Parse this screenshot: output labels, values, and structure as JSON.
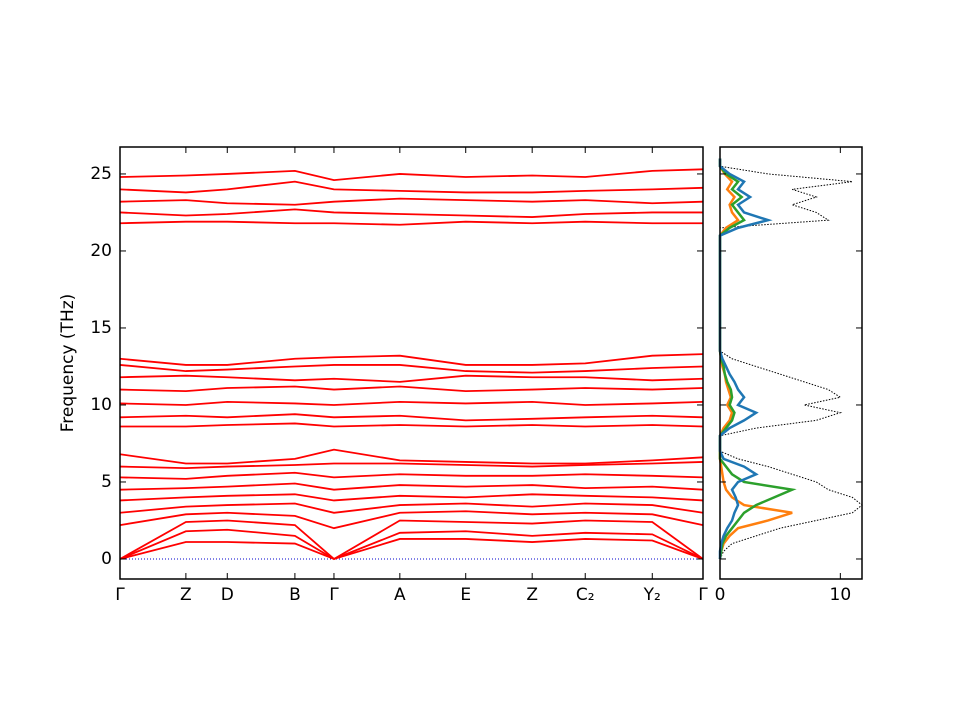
{
  "chart_data": [
    {
      "type": "line",
      "ylabel": "Frequency (THz)",
      "color": "#ff0000",
      "x": [
        0,
        0.113,
        0.184,
        0.3,
        0.367,
        0.48,
        0.593,
        0.707,
        0.798,
        0.913,
        1.0
      ],
      "xlim": [
        0,
        1.0
      ],
      "xticks": [
        {
          "value": 0,
          "label": "Γ"
        },
        {
          "value": 0.113,
          "label": "Z"
        },
        {
          "value": 0.184,
          "label": "D"
        },
        {
          "value": 0.3,
          "label": "B"
        },
        {
          "value": 0.367,
          "label": "Γ"
        },
        {
          "value": 0.48,
          "label": "A"
        },
        {
          "value": 0.593,
          "label": "E"
        },
        {
          "value": 0.707,
          "label": "Z"
        },
        {
          "value": 0.798,
          "label": "C₂"
        },
        {
          "value": 0.913,
          "label": "Y₂"
        },
        {
          "value": 1.0,
          "label": "Γ"
        }
      ],
      "ylim": [
        -1.3,
        26.75
      ],
      "yticks": [
        0,
        5,
        10,
        15,
        20,
        25
      ],
      "hline": 0,
      "hline_color": "#0000cc",
      "series": [
        {
          "values": [
            0,
            1.1,
            1.1,
            1.0,
            0,
            1.3,
            1.3,
            1.1,
            1.3,
            1.2,
            0
          ]
        },
        {
          "values": [
            0,
            1.8,
            1.9,
            1.5,
            0,
            1.7,
            1.8,
            1.5,
            1.7,
            1.6,
            0
          ]
        },
        {
          "values": [
            0,
            2.4,
            2.5,
            2.2,
            0,
            2.5,
            2.4,
            2.3,
            2.5,
            2.4,
            0
          ]
        },
        {
          "values": [
            2.2,
            2.9,
            3.0,
            2.8,
            2.0,
            3.0,
            3.1,
            2.9,
            3.0,
            2.9,
            2.2
          ]
        },
        {
          "values": [
            3.0,
            3.4,
            3.5,
            3.6,
            3.0,
            3.5,
            3.6,
            3.4,
            3.6,
            3.5,
            3.0
          ]
        },
        {
          "values": [
            3.8,
            4.0,
            4.1,
            4.2,
            3.8,
            4.1,
            4.0,
            4.2,
            4.1,
            4.0,
            3.8
          ]
        },
        {
          "values": [
            4.5,
            4.6,
            4.7,
            4.9,
            4.5,
            4.8,
            4.7,
            4.8,
            4.6,
            4.7,
            4.5
          ]
        },
        {
          "values": [
            5.3,
            5.2,
            5.4,
            5.6,
            5.3,
            5.5,
            5.4,
            5.4,
            5.5,
            5.4,
            5.3
          ]
        },
        {
          "values": [
            6.0,
            5.9,
            6.0,
            6.1,
            6.2,
            6.2,
            6.1,
            6.0,
            6.1,
            6.2,
            6.3
          ]
        },
        {
          "values": [
            6.8,
            6.2,
            6.2,
            6.5,
            7.1,
            6.4,
            6.3,
            6.2,
            6.2,
            6.4,
            6.6
          ]
        },
        {
          "values": [
            8.6,
            8.6,
            8.7,
            8.8,
            8.6,
            8.7,
            8.6,
            8.7,
            8.6,
            8.7,
            8.6
          ]
        },
        {
          "values": [
            9.2,
            9.3,
            9.2,
            9.4,
            9.2,
            9.3,
            9.0,
            9.1,
            9.2,
            9.3,
            9.2
          ]
        },
        {
          "values": [
            10.1,
            10.0,
            10.2,
            10.1,
            10.0,
            10.2,
            10.1,
            10.2,
            10.0,
            10.1,
            10.2
          ]
        },
        {
          "values": [
            11.0,
            10.9,
            11.1,
            11.2,
            11.0,
            11.2,
            10.9,
            11.0,
            11.1,
            11.0,
            11.1
          ]
        },
        {
          "values": [
            11.8,
            11.9,
            11.8,
            11.6,
            11.7,
            11.5,
            11.9,
            11.8,
            11.8,
            11.6,
            11.7
          ]
        },
        {
          "values": [
            12.6,
            12.2,
            12.3,
            12.5,
            12.6,
            12.6,
            12.2,
            12.1,
            12.2,
            12.4,
            12.5
          ]
        },
        {
          "values": [
            13.0,
            12.6,
            12.6,
            13.0,
            13.1,
            13.2,
            12.6,
            12.6,
            12.7,
            13.2,
            13.3
          ]
        },
        {
          "values": [
            21.8,
            21.9,
            21.9,
            21.8,
            21.8,
            21.7,
            21.9,
            21.8,
            21.9,
            21.8,
            21.8
          ]
        },
        {
          "values": [
            22.5,
            22.3,
            22.4,
            22.7,
            22.5,
            22.4,
            22.3,
            22.2,
            22.4,
            22.5,
            22.5
          ]
        },
        {
          "values": [
            23.2,
            23.3,
            23.1,
            23.0,
            23.2,
            23.4,
            23.3,
            23.2,
            23.3,
            23.1,
            23.2
          ]
        },
        {
          "values": [
            24.0,
            23.8,
            24.0,
            24.5,
            24.0,
            23.9,
            23.8,
            23.8,
            23.9,
            24.0,
            24.1
          ]
        },
        {
          "values": [
            24.8,
            24.9,
            25.0,
            25.2,
            24.6,
            25.0,
            24.8,
            24.9,
            24.8,
            25.2,
            25.3
          ]
        }
      ]
    },
    {
      "type": "line",
      "orientation": "horizontal",
      "xlim": [
        0,
        11.8
      ],
      "xticks": [
        0,
        10
      ],
      "ylim": [
        -1.3,
        26.75
      ],
      "yticks": [
        0,
        5,
        10,
        15,
        20,
        25
      ],
      "y": [
        0,
        0.5,
        1,
        1.5,
        2,
        2.5,
        3,
        3.5,
        4,
        4.5,
        5,
        5.5,
        6,
        6.5,
        7,
        7.5,
        8,
        8.5,
        9,
        9.5,
        10,
        10.5,
        11,
        11.5,
        12,
        12.5,
        13,
        13.5,
        14,
        14.5,
        15,
        15.5,
        16,
        16.5,
        17,
        17.5,
        18,
        18.5,
        19,
        19.5,
        20,
        20.5,
        21,
        21.5,
        22,
        22.5,
        23,
        23.5,
        24,
        24.5,
        25,
        25.5,
        26
      ],
      "series": [
        {
          "color": "#000000",
          "dash": true,
          "values": [
            0,
            0.3,
            1,
            3,
            5,
            8,
            11,
            12,
            11,
            9,
            8,
            6,
            4,
            1.5,
            0,
            0,
            0,
            3,
            8,
            10,
            7,
            10,
            9,
            7,
            5,
            3,
            1,
            0,
            0,
            0,
            0,
            0,
            0,
            0,
            0,
            0,
            0,
            0,
            0,
            0,
            0,
            0,
            0,
            0,
            9,
            8,
            6,
            8,
            6,
            11,
            4,
            0,
            0
          ]
        },
        {
          "color": "#ff7f0e",
          "values": [
            0,
            0.1,
            0.3,
            0.8,
            1.5,
            4,
            6,
            2,
            1,
            0.5,
            0.3,
            0.2,
            0.1,
            0,
            0,
            0,
            0,
            0.3,
            0.8,
            1,
            0.6,
            0.9,
            0.7,
            0.5,
            0.4,
            0.2,
            0.1,
            0,
            0,
            0,
            0,
            0,
            0,
            0,
            0,
            0,
            0,
            0,
            0,
            0,
            0,
            0,
            0,
            0.5,
            1.5,
            1,
            0.8,
            1.2,
            0.6,
            1,
            0.4,
            0,
            0
          ]
        },
        {
          "color": "#2ca02c",
          "values": [
            0,
            0.1,
            0.2,
            0.5,
            1,
            1.5,
            2,
            3,
            4.5,
            6,
            2,
            1,
            0.5,
            0,
            0,
            0,
            0,
            0.5,
            1,
            1.2,
            0.8,
            1,
            0.9,
            0.6,
            0.4,
            0.3,
            0.1,
            0,
            0,
            0,
            0,
            0,
            0,
            0,
            0,
            0,
            0,
            0,
            0,
            0,
            0,
            0,
            0,
            0.8,
            2,
            1.5,
            1,
            1.8,
            1,
            1.5,
            0.5,
            0,
            0
          ]
        },
        {
          "color": "#1f77b4",
          "values": [
            0,
            0,
            0.1,
            0.3,
            0.6,
            1,
            1.2,
            1.5,
            1.3,
            1,
            1.5,
            3,
            2,
            0.3,
            0,
            0,
            0,
            0.8,
            2,
            3,
            1.5,
            2,
            1.5,
            1.2,
            0.8,
            0.5,
            0.2,
            0,
            0,
            0,
            0,
            0,
            0,
            0,
            0,
            0,
            0,
            0,
            0,
            0,
            0,
            0,
            0,
            1.5,
            4,
            2,
            1.5,
            2.5,
            1.5,
            2,
            0.8,
            0,
            0
          ]
        }
      ]
    }
  ]
}
